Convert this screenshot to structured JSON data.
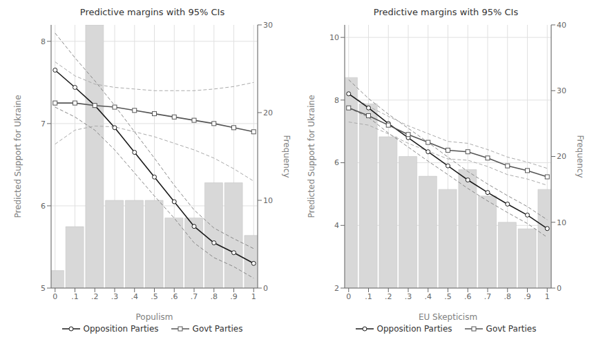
{
  "chart_data": [
    {
      "type": "line",
      "title": "Predictive margins with 95% CIs",
      "x_label": "Populism",
      "y_label": "Predicted Support for Ukraine",
      "y2_label": "Frequency",
      "x": [
        0.0,
        0.1,
        0.2,
        0.3,
        0.4,
        0.5,
        0.6,
        0.7,
        0.8,
        0.9,
        1.0
      ],
      "xlim": [
        -0.02,
        1.02
      ],
      "xticks": [
        0,
        {
          "value": 0.1,
          "label": ".1"
        },
        {
          "value": 0.2,
          "label": ".2"
        },
        {
          "value": 0.3,
          "label": ".3"
        },
        {
          "value": 0.4,
          "label": ".4"
        },
        {
          "value": 0.5,
          "label": ".5"
        },
        {
          "value": 0.6,
          "label": ".6"
        },
        {
          "value": 0.7,
          "label": ".7"
        },
        {
          "value": 0.8,
          "label": ".8"
        },
        {
          "value": 0.9,
          "label": ".9"
        },
        1
      ],
      "ylim": [
        5,
        8.2
      ],
      "yticks": [
        5,
        6,
        7,
        8
      ],
      "y2lim": [
        0,
        30
      ],
      "y2ticks": [
        0,
        10,
        20,
        30
      ],
      "grid": true,
      "legend": "bottom",
      "series": [
        {
          "type": "bar",
          "axis": "y2",
          "color": "#d8d8d8",
          "values": [
            2,
            7,
            30,
            10,
            10,
            10,
            8,
            8,
            12,
            12,
            6
          ]
        },
        {
          "type": "line",
          "color": "#888888",
          "line_style": "dashed",
          "values": [
            8.1,
            7.8,
            7.52,
            7.22,
            6.9,
            6.58,
            6.25,
            5.95,
            5.73,
            5.6,
            5.48
          ]
        },
        {
          "type": "line",
          "color": "#888888",
          "line_style": "dashed",
          "values": [
            7.2,
            7.08,
            6.92,
            6.68,
            6.4,
            6.12,
            5.85,
            5.55,
            5.37,
            5.26,
            5.12
          ]
        },
        {
          "type": "line",
          "color": "#aaaaaa",
          "line_style": "dashed",
          "values": [
            7.75,
            7.58,
            7.48,
            7.44,
            7.42,
            7.4,
            7.4,
            7.4,
            7.42,
            7.45,
            7.5
          ]
        },
        {
          "type": "line",
          "color": "#aaaaaa",
          "line_style": "dashed",
          "values": [
            6.75,
            6.92,
            6.97,
            6.96,
            6.9,
            6.84,
            6.76,
            6.68,
            6.58,
            6.45,
            6.3
          ]
        },
        {
          "type": "line",
          "name": "Opposition Parties",
          "color": "#1a1a1a",
          "marker": "circle",
          "line_style": "solid",
          "values": [
            7.65,
            7.44,
            7.22,
            6.95,
            6.65,
            6.35,
            6.05,
            5.75,
            5.55,
            5.43,
            5.3
          ]
        },
        {
          "type": "line",
          "name": "Govt Parties",
          "color": "#555555",
          "marker": "square",
          "line_style": "solid",
          "values": [
            7.25,
            7.25,
            7.22,
            7.2,
            7.16,
            7.12,
            7.08,
            7.04,
            7.0,
            6.95,
            6.9
          ]
        }
      ]
    },
    {
      "type": "line",
      "title": "Predictive margins with 95% CIs",
      "x_label": "EU Skepticism",
      "y_label": "Predicted Support for Ukraine",
      "y2_label": "Frequency",
      "x": [
        0.0,
        0.1,
        0.2,
        0.3,
        0.4,
        0.5,
        0.6,
        0.7,
        0.8,
        0.9,
        1.0
      ],
      "xlim": [
        -0.02,
        1.02
      ],
      "xticks": [
        0,
        {
          "value": 0.1,
          "label": ".1"
        },
        {
          "value": 0.2,
          "label": ".2"
        },
        {
          "value": 0.3,
          "label": ".3"
        },
        {
          "value": 0.4,
          "label": ".4"
        },
        {
          "value": 0.5,
          "label": ".5"
        },
        {
          "value": 0.6,
          "label": ".6"
        },
        {
          "value": 0.7,
          "label": ".7"
        },
        {
          "value": 0.8,
          "label": ".8"
        },
        {
          "value": 0.9,
          "label": ".9"
        },
        1
      ],
      "ylim": [
        2,
        10.4
      ],
      "yticks": [
        2,
        4,
        6,
        8,
        10
      ],
      "y2lim": [
        0,
        40
      ],
      "y2ticks": [
        0,
        10,
        20,
        30,
        40
      ],
      "grid": true,
      "legend": "bottom",
      "series": [
        {
          "type": "bar",
          "axis": "y2",
          "color": "#d8d8d8",
          "values": [
            32,
            28,
            23,
            20,
            17,
            15,
            18,
            14,
            10,
            9,
            15
          ]
        },
        {
          "type": "line",
          "color": "#888888",
          "line_style": "dashed",
          "values": [
            8.65,
            8.05,
            7.55,
            7.1,
            6.65,
            6.18,
            5.72,
            5.32,
            4.95,
            4.6,
            4.18
          ]
        },
        {
          "type": "line",
          "color": "#888888",
          "line_style": "dashed",
          "values": [
            7.75,
            7.45,
            6.95,
            6.5,
            6.05,
            5.62,
            5.18,
            4.78,
            4.41,
            4.06,
            3.62
          ]
        },
        {
          "type": "line",
          "color": "#aaaaaa",
          "line_style": "dashed",
          "values": [
            8.2,
            7.8,
            7.48,
            7.18,
            6.93,
            6.68,
            6.62,
            6.42,
            6.18,
            6.02,
            5.82
          ]
        },
        {
          "type": "line",
          "color": "#aaaaaa",
          "line_style": "dashed",
          "values": [
            7.3,
            7.2,
            6.92,
            6.62,
            6.37,
            6.12,
            6.08,
            5.88,
            5.62,
            5.48,
            5.28
          ]
        },
        {
          "type": "line",
          "name": "Opposition Parties",
          "color": "#1a1a1a",
          "marker": "circle",
          "line_style": "solid",
          "values": [
            8.2,
            7.75,
            7.25,
            6.8,
            6.35,
            5.9,
            5.45,
            5.05,
            4.68,
            4.33,
            3.9
          ]
        },
        {
          "type": "line",
          "name": "Govt Parties",
          "color": "#555555",
          "marker": "square",
          "line_style": "solid",
          "values": [
            7.75,
            7.5,
            7.2,
            6.9,
            6.65,
            6.4,
            6.35,
            6.15,
            5.9,
            5.75,
            5.55
          ]
        }
      ]
    }
  ]
}
